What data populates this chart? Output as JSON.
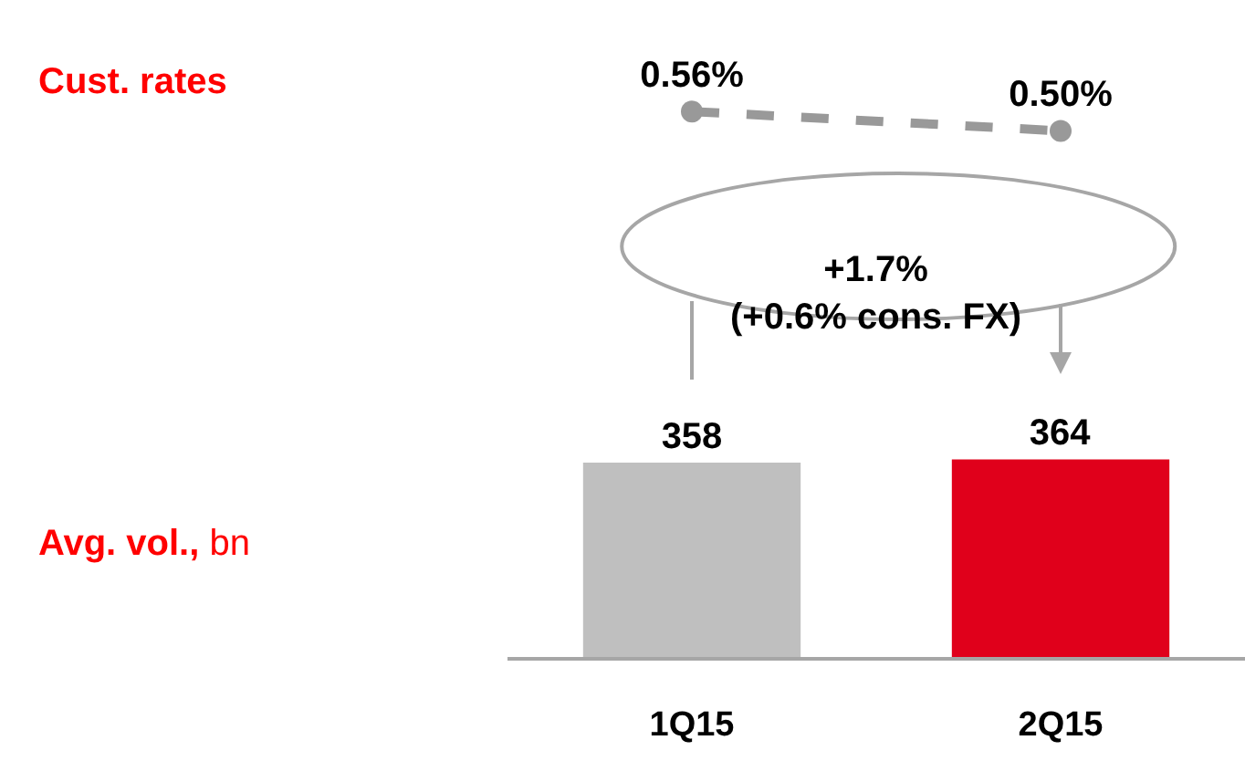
{
  "chart_data": [
    {
      "type": "line",
      "ylabel": "Cust. rates",
      "categories": [
        null,
        null
      ],
      "series": [
        {
          "color": "#999999",
          "values": [
            0.56,
            0.5
          ],
          "value_labels": [
            "0.56%",
            "0.50%"
          ]
        }
      ],
      "marker": "circle",
      "line_style": "dashed",
      "tick_labels": false
    },
    {
      "type": "bar",
      "ylabel": "Avg. vol., bn",
      "categories": [
        "1Q15",
        "2Q15"
      ],
      "values": [
        358,
        364
      ],
      "colors": [
        "#bfbfbf",
        "#e0001b"
      ],
      "data_labels": true,
      "tick_labels": "x",
      "annotations": [
        "+1.7%\n(+0.6% cons. FX)"
      ]
    }
  ]
}
